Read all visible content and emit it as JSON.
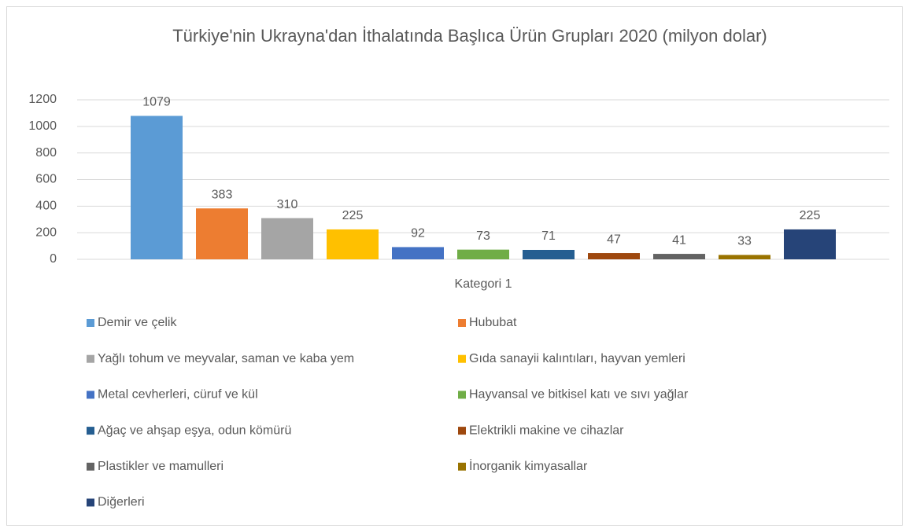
{
  "chart_data": {
    "type": "bar",
    "title": "Türkiye'nin Ukrayna'dan İthalatında Başlıca Ürün Grupları 2020 (milyon dolar)",
    "categories": [
      "Kategori 1"
    ],
    "series": [
      {
        "name": "Demir ve çelik",
        "color": "#5b9bd5",
        "values": [
          1079
        ]
      },
      {
        "name": "Hububat",
        "color": "#ed7d31",
        "values": [
          383
        ]
      },
      {
        "name": "Yağlı tohum ve meyvalar, saman ve kaba yem",
        "color": "#a5a5a5",
        "values": [
          310
        ]
      },
      {
        "name": "Gıda sanayii kalıntıları, hayvan yemleri",
        "color": "#ffc000",
        "values": [
          225
        ]
      },
      {
        "name": "Metal cevherleri, cüruf ve kül",
        "color": "#4472c4",
        "values": [
          92
        ]
      },
      {
        "name": "Hayvansal ve bitkisel katı ve sıvı yağlar",
        "color": "#70ad47",
        "values": [
          73
        ]
      },
      {
        "name": "Ağaç ve ahşap eşya, odun kömürü",
        "color": "#255e91",
        "values": [
          71
        ]
      },
      {
        "name": "Elektrikli makine ve cihazlar",
        "color": "#9e480e",
        "values": [
          47
        ]
      },
      {
        "name": "Plastikler ve mamulleri",
        "color": "#636363",
        "values": [
          41
        ]
      },
      {
        "name": "İnorganik kimyasallar",
        "color": "#997300",
        "values": [
          33
        ]
      },
      {
        "name": "Diğerleri",
        "color": "#264478",
        "values": [
          225
        ]
      }
    ],
    "ylim": [
      0,
      1200
    ],
    "yticks": [
      0,
      200,
      400,
      600,
      800,
      1000,
      1200
    ],
    "grid": true,
    "legend": "bottom"
  }
}
